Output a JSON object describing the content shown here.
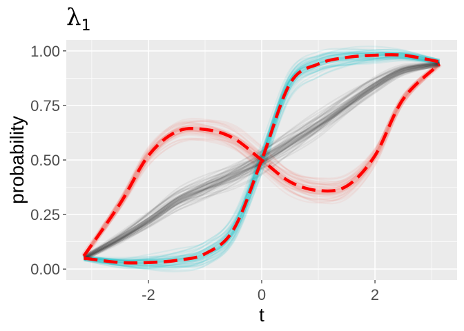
{
  "chart_data": {
    "type": "line",
    "title": "λ",
    "title_subscript": "1",
    "xlabel": "t",
    "ylabel": "probability",
    "xlim": [
      -3.45,
      3.45
    ],
    "ylim": [
      -0.05,
      1.05
    ],
    "x_ticks": [
      -2,
      0,
      2
    ],
    "x_tick_labels": [
      "-2",
      "0",
      "2"
    ],
    "y_ticks": [
      0.0,
      0.25,
      0.5,
      0.75,
      1.0
    ],
    "y_tick_labels": [
      "0.00",
      "0.25",
      "0.50",
      "0.75",
      "1.00"
    ],
    "grid": true,
    "legend": "none",
    "background_color": "#ebebeb",
    "grid_color": "#ffffff",
    "series": [
      {
        "color": "#f8766d",
        "style": "many semi-transparent sample curves",
        "x": [
          -3.14,
          -2.5,
          -2.0,
          -1.5,
          -1.0,
          -0.5,
          0.0,
          0.5,
          1.0,
          1.5,
          2.0,
          2.5,
          3.14
        ],
        "values": [
          0.06,
          0.3,
          0.52,
          0.63,
          0.64,
          0.6,
          0.5,
          0.4,
          0.36,
          0.38,
          0.52,
          0.78,
          0.94
        ]
      },
      {
        "color": "#00bfc4",
        "style": "many semi-transparent sample curves",
        "x": [
          -3.14,
          -2.5,
          -2.0,
          -1.5,
          -1.0,
          -0.5,
          0.0,
          0.5,
          1.0,
          1.5,
          2.0,
          2.5,
          3.14
        ],
        "values": [
          0.05,
          0.03,
          0.03,
          0.04,
          0.07,
          0.18,
          0.5,
          0.85,
          0.94,
          0.97,
          0.98,
          0.98,
          0.95
        ]
      },
      {
        "color": "#262626",
        "style": "many semi-transparent sample curves",
        "x": [
          -3.14,
          -2.5,
          -2.0,
          -1.5,
          -1.0,
          -0.5,
          0.0,
          0.5,
          1.0,
          1.5,
          2.0,
          2.5,
          3.14
        ],
        "values": [
          0.05,
          0.14,
          0.22,
          0.31,
          0.37,
          0.43,
          0.5,
          0.58,
          0.66,
          0.75,
          0.84,
          0.91,
          0.94
        ]
      },
      {
        "color": "#ff0000",
        "style": "dashed reference curve",
        "x": [
          -3.14,
          -2.5,
          -2.0,
          -1.5,
          -1.0,
          -0.5,
          0.0,
          0.5,
          1.0,
          1.5,
          2.0,
          2.5,
          3.14
        ],
        "values": [
          0.06,
          0.3,
          0.52,
          0.63,
          0.64,
          0.6,
          0.5,
          0.4,
          0.36,
          0.38,
          0.52,
          0.78,
          0.94
        ]
      },
      {
        "color": "#ff0000",
        "style": "dashed reference curve",
        "x": [
          -3.14,
          -2.5,
          -2.0,
          -1.5,
          -1.0,
          -0.5,
          0.0,
          0.5,
          1.0,
          1.5,
          2.0,
          2.5,
          3.14
        ],
        "values": [
          0.05,
          0.03,
          0.03,
          0.04,
          0.07,
          0.18,
          0.5,
          0.85,
          0.94,
          0.97,
          0.98,
          0.98,
          0.95
        ]
      }
    ]
  }
}
